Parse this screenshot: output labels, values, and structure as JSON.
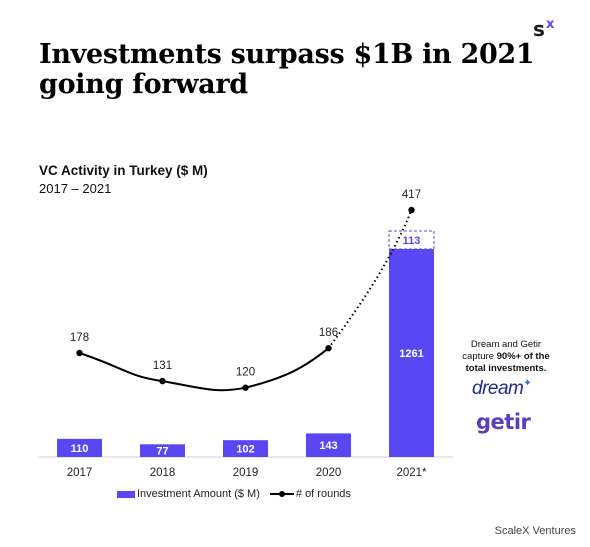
{
  "brand": {
    "logo_text": "sx"
  },
  "title": {
    "line1": "Investments surpass $1B in 2021",
    "line2": "going forward"
  },
  "chart_data": {
    "type": "bar",
    "title": "VC Activity in Turkey ($ M)",
    "subtitle": "2017 – 2021",
    "categories": [
      "2017",
      "2018",
      "2019",
      "2020",
      "2021*"
    ],
    "series": [
      {
        "name": "Investment Amount ($ M)",
        "type": "bar",
        "values": [
          110,
          77,
          102,
          143,
          1261
        ],
        "color": "#5847f2"
      },
      {
        "name": "# of rounds",
        "type": "line",
        "values": [
          178,
          131,
          120,
          186,
          417
        ],
        "color": "#000000"
      }
    ],
    "stacked_extra": {
      "category": "2021*",
      "value": 113,
      "style": "dashed-outline"
    },
    "legend_position": "bottom",
    "grid": false
  },
  "annotation": {
    "line1": "Dream and Getir",
    "line2_prefix": "capture ",
    "line2_bold": "90%+ of the",
    "line3_bold": "total investments."
  },
  "brands": {
    "dream": "dream",
    "getir": "getir"
  },
  "source": "ScaleX Ventures"
}
